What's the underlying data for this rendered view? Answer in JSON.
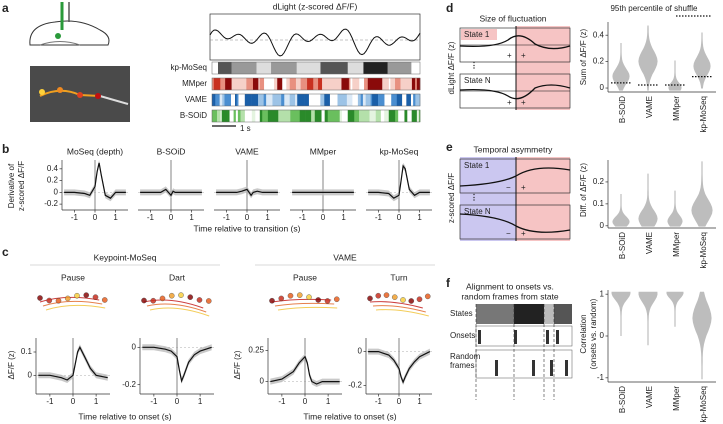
{
  "panel_labels": [
    "a",
    "b",
    "c",
    "d",
    "e",
    "f"
  ],
  "panel_a": {
    "title": "dLight (z-scored ΔF/F)",
    "rows": [
      "kp-MoSeq",
      "MMper",
      "VAME",
      "B-SOiD"
    ],
    "scale_bar": "1 s"
  },
  "panel_b": {
    "ylabel_1": "Derivative of",
    "ylabel_2": "z-scored ΔF/F",
    "xlabel": "Time relative to transition (s)",
    "x": [
      -1.5,
      -1,
      -0.5,
      -0.25,
      0,
      0.1,
      0.2,
      0.3,
      0.5,
      0.75,
      1,
      1.5
    ],
    "xlim": [
      -1.6,
      1.6
    ],
    "xticks": [
      -1,
      0,
      1
    ],
    "ylim": [
      -0.3,
      0.55
    ],
    "yticks": [
      -0.2,
      0,
      0.2,
      0.4
    ],
    "plots": [
      {
        "title": "MoSeq (depth)",
        "values": [
          0,
          0,
          -0.02,
          -0.05,
          0.1,
          0.35,
          0.5,
          0.3,
          -0.05,
          -0.1,
          0,
          0
        ]
      },
      {
        "title": "B-SOiD",
        "values": [
          0,
          0,
          0,
          0.05,
          -0.05,
          0.02,
          0,
          0,
          0,
          0,
          0,
          0
        ]
      },
      {
        "title": "VAME",
        "values": [
          0,
          0,
          0,
          0.02,
          0.05,
          0,
          -0.05,
          0,
          0.02,
          0,
          0,
          0
        ]
      },
      {
        "title": "MMper",
        "values": [
          0,
          0,
          0,
          0,
          0,
          0,
          0,
          0,
          0,
          0,
          0,
          0
        ]
      },
      {
        "title": "kp-MoSeq",
        "values": [
          0,
          0,
          -0.02,
          -0.1,
          -0.05,
          0.2,
          0.45,
          0.4,
          0.05,
          -0.05,
          0,
          0
        ]
      }
    ]
  },
  "panel_c": {
    "groups": [
      "Keypoint-MoSeq",
      "VAME"
    ],
    "ylabel": "ΔF/F (z)",
    "xlabel": "Time relative to onset (s)",
    "x": [
      -1.5,
      -1,
      -0.5,
      -0.25,
      0,
      0.1,
      0.2,
      0.3,
      0.5,
      0.75,
      1,
      1.5
    ],
    "xlim": [
      -1.6,
      1.6
    ],
    "xticks": [
      -1,
      0,
      1
    ],
    "plots": [
      {
        "title": "Pause",
        "ylim": [
          -0.08,
          0.16
        ],
        "yticks": [
          0,
          0.1
        ],
        "values": [
          0,
          0,
          -0.01,
          -0.02,
          0,
          0.05,
          0.1,
          0.12,
          0.08,
          0.03,
          0,
          -0.01
        ]
      },
      {
        "title": "Dart",
        "ylim": [
          -0.25,
          0.05
        ],
        "yticks": [
          -0.2,
          0
        ],
        "values": [
          0,
          0,
          -0.01,
          -0.02,
          -0.05,
          -0.12,
          -0.18,
          -0.15,
          -0.08,
          -0.04,
          -0.02,
          0
        ]
      },
      {
        "title": "Pause",
        "ylim": [
          -0.1,
          0.35
        ],
        "yticks": [
          0,
          0.25
        ],
        "values": [
          0,
          0.02,
          0.08,
          0.15,
          0.2,
          0.15,
          0.05,
          0,
          -0.02,
          0,
          0,
          0
        ]
      },
      {
        "title": "Turn",
        "ylim": [
          -0.25,
          0.08
        ],
        "yticks": [
          -0.2,
          0
        ],
        "values": [
          0,
          0,
          -0.02,
          -0.05,
          -0.1,
          -0.15,
          -0.18,
          -0.15,
          -0.1,
          -0.06,
          -0.03,
          0
        ]
      }
    ]
  },
  "panel_d": {
    "title": "Size of fluctuation",
    "state_1": "State 1",
    "state_n": "State N",
    "ylabel": "dLight ΔF/F (z)",
    "signs": [
      "+",
      "+"
    ],
    "legend": "95th percentile of shuffle",
    "violin_ylabel": "Sum of ΔF/F (z)",
    "categories": [
      "B-SOiD",
      "VAME",
      "MMper",
      "kp-MoSeq"
    ],
    "ylim": [
      -0.03,
      0.5
    ],
    "yticks": [
      0,
      0.2,
      0.4
    ]
  },
  "panel_e": {
    "title": "Temporal asymmetry",
    "state_1": "State 1",
    "state_n": "State N",
    "ylabel": "z-scored ΔF/F",
    "signs": [
      "−",
      "+"
    ],
    "violin_ylabel": "Diff. of ΔF/F (z)",
    "categories": [
      "B-SOiD",
      "VAME",
      "MMper",
      "kp-MoSeq"
    ],
    "ylim": [
      -0.01,
      0.3
    ],
    "yticks": [
      0,
      0.1,
      0.2
    ]
  },
  "panel_f": {
    "title_1": "Alignment to onsets vs.",
    "title_2": "random frames from state",
    "rows": [
      "States",
      "Onsets"
    ],
    "random_1": "Random",
    "random_2": "frames",
    "violin_ylabel_1": "Correlation",
    "violin_ylabel_2": "(onsets vs. random)",
    "categories": [
      "B-SOiD",
      "VAME",
      "MMper",
      "kp-MoSeq"
    ],
    "ylim": [
      -1.1,
      1.1
    ],
    "yticks": [
      -1,
      0,
      1
    ]
  }
}
